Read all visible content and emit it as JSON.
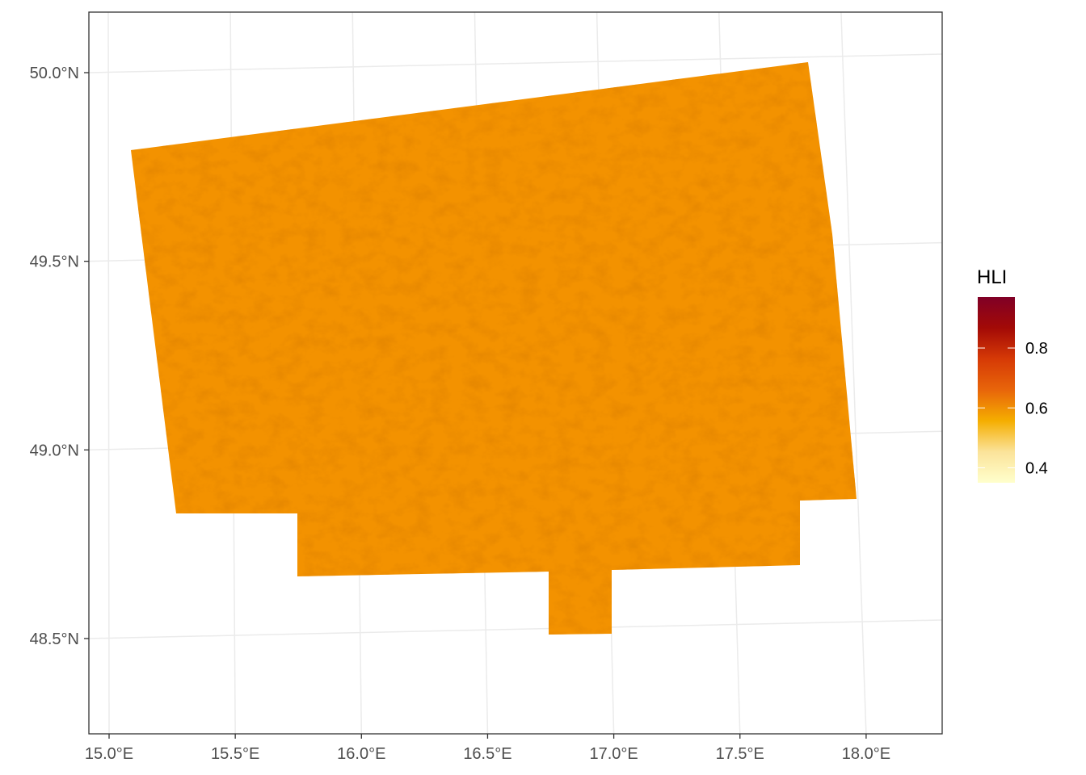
{
  "chart_data": {
    "type": "heatmap",
    "subtype": "raster map",
    "title": "",
    "xlabel": "",
    "ylabel": "",
    "x_ticks": [
      {
        "value": 15.0,
        "label": "15.0°E"
      },
      {
        "value": 15.5,
        "label": "15.5°E"
      },
      {
        "value": 16.0,
        "label": "16.0°E"
      },
      {
        "value": 16.5,
        "label": "16.5°E"
      },
      {
        "value": 17.0,
        "label": "17.0°E"
      },
      {
        "value": 17.5,
        "label": "17.5°E"
      },
      {
        "value": 18.0,
        "label": "18.0°E"
      }
    ],
    "y_ticks": [
      {
        "value": 50.0,
        "label": "50.0°N"
      },
      {
        "value": 49.5,
        "label": "49.5°N"
      },
      {
        "value": 49.0,
        "label": "49.0°N"
      },
      {
        "value": 48.5,
        "label": "48.5°N"
      }
    ],
    "xlim": [
      14.92,
      18.3
    ],
    "ylim": [
      48.25,
      50.16
    ],
    "grid": true,
    "legend": {
      "title": "HLI",
      "position": "right",
      "range": [
        0.35,
        0.97
      ],
      "ticks": [
        {
          "value": 0.8,
          "label": "0.8"
        },
        {
          "value": 0.6,
          "label": "0.6"
        },
        {
          "value": 0.4,
          "label": "0.4"
        }
      ],
      "colors": [
        "#FFFFCC",
        "#FBE39A",
        "#F5AE00",
        "#E8650A",
        "#D63A06",
        "#A30A06",
        "#800026"
      ]
    },
    "dominant_value": 0.62,
    "dominant_color": "#F39200"
  }
}
